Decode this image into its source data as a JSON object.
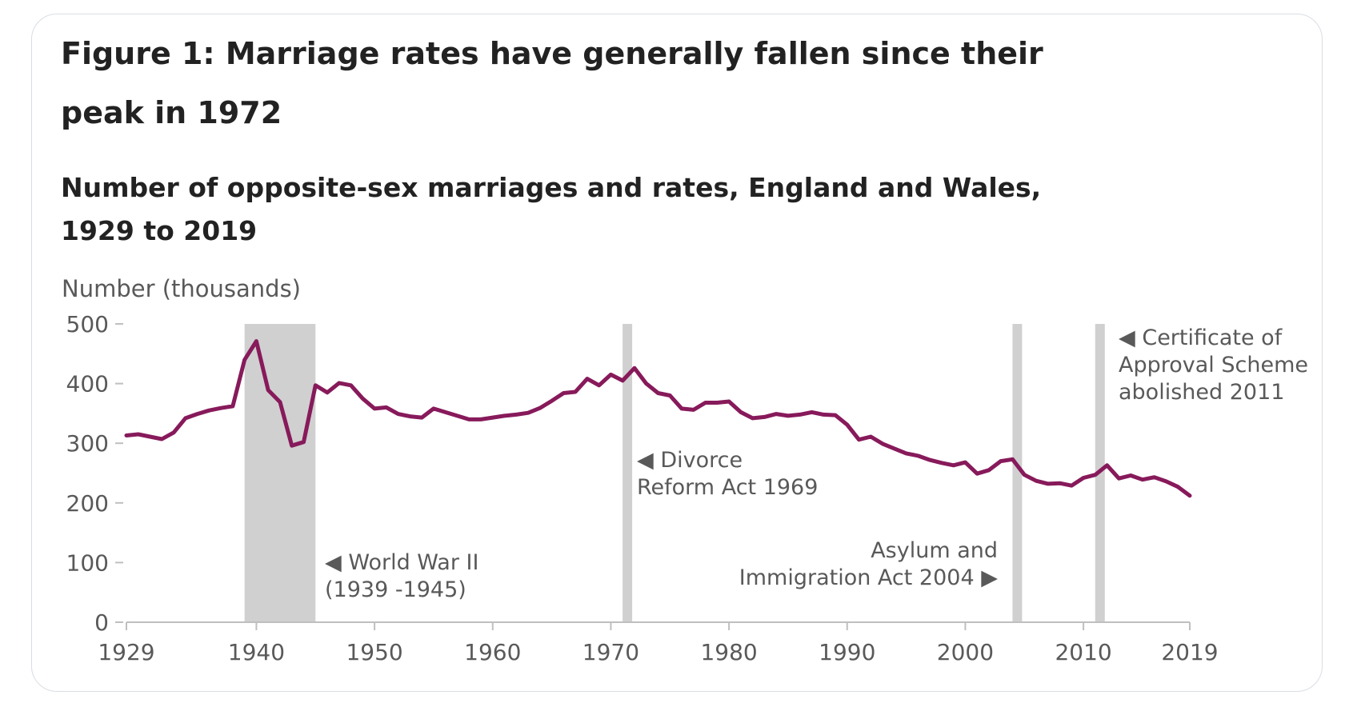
{
  "figure_title": "Figure 1: Marriage rates have generally fallen since their peak in 1972",
  "colors": {
    "series": "#871a5b",
    "shade": "#d0d0d0",
    "axis": "#bfbfbf",
    "text": "#595959",
    "title": "#222222"
  },
  "chart_data": {
    "type": "line",
    "title": "Number of opposite-sex marriages and rates, England and Wales, 1929 to 2019",
    "ylabel": "Number (thousands)",
    "xlabel": "",
    "ylim": [
      0,
      500
    ],
    "xlim": [
      1929,
      2019
    ],
    "grid": false,
    "xticks": [
      1929,
      1940,
      1950,
      1960,
      1970,
      1980,
      1990,
      2000,
      2010,
      2019
    ],
    "yticks": [
      0,
      100,
      200,
      300,
      400,
      500
    ],
    "x": [
      1929,
      1930,
      1931,
      1932,
      1933,
      1934,
      1935,
      1936,
      1937,
      1938,
      1939,
      1940,
      1941,
      1942,
      1943,
      1944,
      1945,
      1946,
      1947,
      1948,
      1949,
      1950,
      1951,
      1952,
      1953,
      1954,
      1955,
      1956,
      1957,
      1958,
      1959,
      1960,
      1961,
      1962,
      1963,
      1964,
      1965,
      1966,
      1967,
      1968,
      1969,
      1970,
      1971,
      1972,
      1973,
      1974,
      1975,
      1976,
      1977,
      1978,
      1979,
      1980,
      1981,
      1982,
      1983,
      1984,
      1985,
      1986,
      1987,
      1988,
      1989,
      1990,
      1991,
      1992,
      1993,
      1994,
      1995,
      1996,
      1997,
      1998,
      1999,
      2000,
      2001,
      2002,
      2003,
      2004,
      2005,
      2006,
      2007,
      2008,
      2009,
      2010,
      2011,
      2012,
      2013,
      2014,
      2015,
      2016,
      2017,
      2018,
      2019
    ],
    "series": [
      {
        "values": [
          313,
          315,
          311,
          307,
          318,
          342,
          349,
          355,
          359,
          362,
          440,
          471,
          389,
          369,
          296,
          302,
          397,
          385,
          401,
          397,
          375,
          358,
          360,
          349,
          345,
          343,
          358,
          352,
          346,
          340,
          340,
          343,
          346,
          348,
          351,
          359,
          371,
          384,
          386,
          408,
          397,
          415,
          405,
          426,
          400,
          384,
          380,
          358,
          356,
          368,
          368,
          370,
          352,
          342,
          344,
          349,
          346,
          348,
          352,
          348,
          347,
          331,
          306,
          311,
          299,
          291,
          283,
          279,
          272,
          267,
          263,
          268,
          249,
          255,
          270,
          273,
          247,
          237,
          232,
          233,
          229,
          242,
          247,
          263,
          241,
          246,
          239,
          243,
          236,
          227,
          212
        ]
      }
    ],
    "shaded_periods": [
      {
        "start": 1939,
        "end": 1945
      },
      {
        "start": 1971,
        "end": 1971.8
      },
      {
        "start": 2004,
        "end": 2004.8
      },
      {
        "start": 2011,
        "end": 2011.8
      }
    ],
    "annotations": [
      {
        "lines": [
          "◀ World War II",
          "(1939 -1945)"
        ]
      },
      {
        "lines": [
          "◀ Divorce",
          "Reform Act 1969"
        ]
      },
      {
        "lines": [
          "Asylum and",
          "Immigration Act 2004 ▶"
        ]
      },
      {
        "lines": [
          "◀ Certificate of",
          "Approval Scheme",
          "abolished 2011"
        ]
      }
    ]
  }
}
